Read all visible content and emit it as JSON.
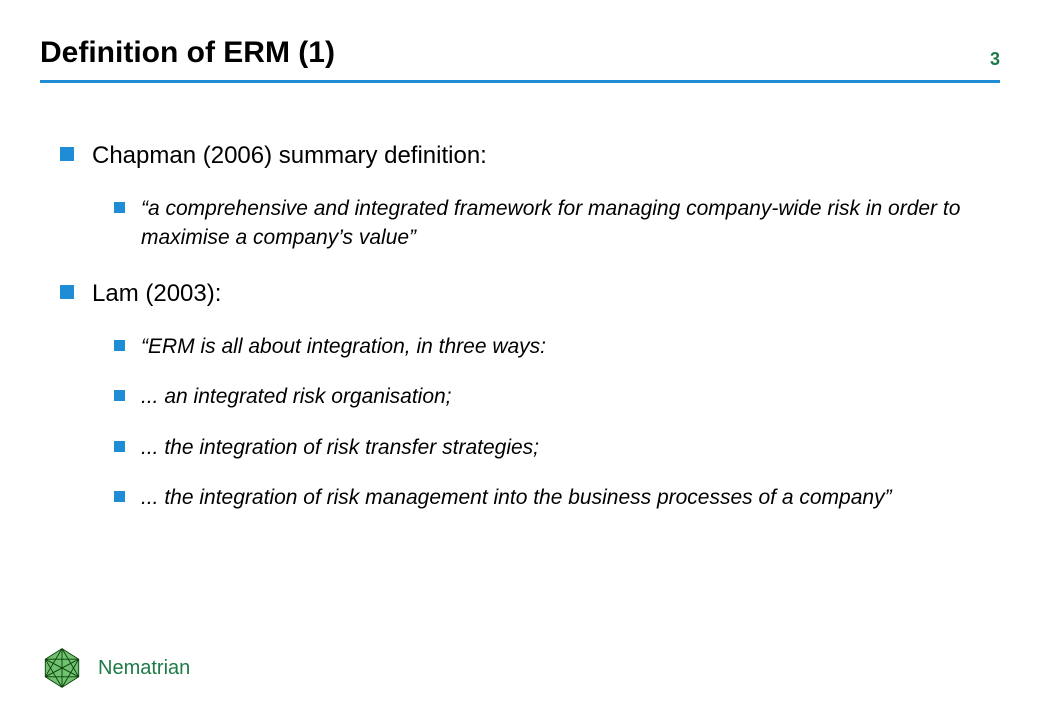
{
  "colors": {
    "rule": "#1f8dd6",
    "bullet": "#1f8dd6",
    "page_number": "#1e7a46",
    "brand": "#1e7a46",
    "text": "#000000",
    "logo_fill": "#57b657",
    "logo_stroke": "#0a3f0a"
  },
  "header": {
    "title": "Definition of ERM (1)",
    "page_number": "3"
  },
  "body": {
    "items": [
      {
        "level": 1,
        "italic": false,
        "text": "Chapman (2006) summary definition:"
      },
      {
        "level": 2,
        "italic": true,
        "text": "“a comprehensive and integrated framework for managing company-wide risk in order to maximise a company’s value”"
      },
      {
        "level": 1,
        "italic": false,
        "text": "Lam (2003):"
      },
      {
        "level": 2,
        "italic": true,
        "text": "“ERM is all about integration, in three ways:"
      },
      {
        "level": 2,
        "italic": true,
        "text": "... an integrated risk organisation;"
      },
      {
        "level": 2,
        "italic": true,
        "text": "... the integration of risk transfer strategies;"
      },
      {
        "level": 2,
        "italic": true,
        "text": "... the integration of risk management into the business processes of a company”"
      }
    ]
  },
  "footer": {
    "brand": "Nematrian"
  }
}
